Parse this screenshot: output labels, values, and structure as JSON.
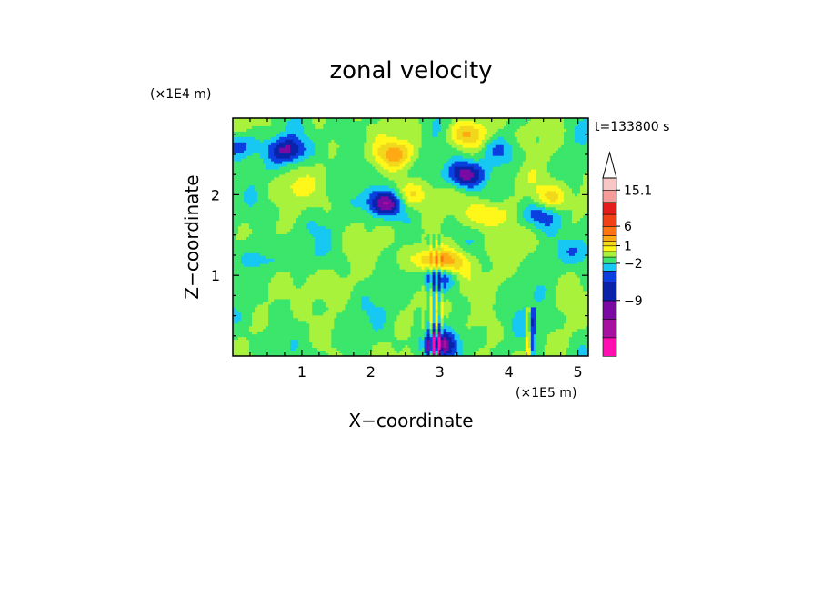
{
  "chart_data": {
    "type": "heatmap",
    "title": "zonal velocity",
    "xlabel": "X−coordinate",
    "ylabel": "Z−coordinate",
    "x_unit": "(×1E5 m)",
    "y_unit": "(×1E4 m)",
    "time_label": "t=133800 s",
    "x_ticks": [
      "1",
      "2",
      "3",
      "4",
      "5"
    ],
    "y_ticks": [
      "1",
      "2"
    ],
    "xlim": [
      0,
      5.15
    ],
    "ylim": [
      0,
      2.95
    ],
    "colorbar": {
      "labels": [
        "15.1",
        "6",
        "1",
        "−2",
        "−9"
      ],
      "level_colors": [
        "#ff0fb0",
        "#a6129f",
        "#7a0aa2",
        "#0a23aa",
        "#0b3fe0",
        "#16c8f2",
        "#3be66b",
        "#a8f23d",
        "#fff71a",
        "#f2d81c",
        "#ffaa14",
        "#ff7312",
        "#f04016",
        "#e41c1c",
        "#f79a9a",
        "#f9c6c6"
      ],
      "extend_top": true
    },
    "field_features": [
      {
        "x": 2.9,
        "z": 1.15,
        "value": 7
      },
      {
        "x": 3.2,
        "z": 1.15,
        "value": 6
      },
      {
        "x": 2.35,
        "z": 2.5,
        "value": 6
      },
      {
        "x": 3.4,
        "z": 2.75,
        "value": 6
      },
      {
        "x": 2.55,
        "z": 2.0,
        "value": 5
      },
      {
        "x": 3.7,
        "z": 1.75,
        "value": 5
      },
      {
        "x": 4.6,
        "z": 1.95,
        "value": 5
      },
      {
        "x": 3.35,
        "z": 2.25,
        "value": -9
      },
      {
        "x": 2.2,
        "z": 1.9,
        "value": -9
      },
      {
        "x": 0.8,
        "z": 2.55,
        "value": -7
      },
      {
        "x": 0.05,
        "z": 2.6,
        "value": -6
      },
      {
        "x": 0.45,
        "z": 1.2,
        "value": -3
      },
      {
        "x": 5.0,
        "z": 1.3,
        "value": -3
      },
      {
        "x": 3.85,
        "z": 2.55,
        "value": -3
      },
      {
        "x": 4.45,
        "z": 1.75,
        "value": -5
      },
      {
        "x": 2.95,
        "z": 1.0,
        "value": -8
      },
      {
        "x": 3.0,
        "z": 0.15,
        "value": -8
      },
      {
        "x": 1.1,
        "z": 1.6,
        "value": -1
      },
      {
        "x": 4.1,
        "z": 0.9,
        "value": -1
      },
      {
        "x": 1.6,
        "z": 0.55,
        "value": -1
      },
      {
        "x": 4.3,
        "z": 0.35,
        "value": -1
      },
      {
        "x": 0.5,
        "z": 0.1,
        "value": -1
      },
      {
        "x": 1.2,
        "z": 0.9,
        "value": 2
      },
      {
        "x": 3.5,
        "z": 0.9,
        "value": 2
      },
      {
        "x": 0.8,
        "z": 2.1,
        "value": 2
      },
      {
        "x": 4.2,
        "z": 2.2,
        "value": 2
      }
    ]
  }
}
